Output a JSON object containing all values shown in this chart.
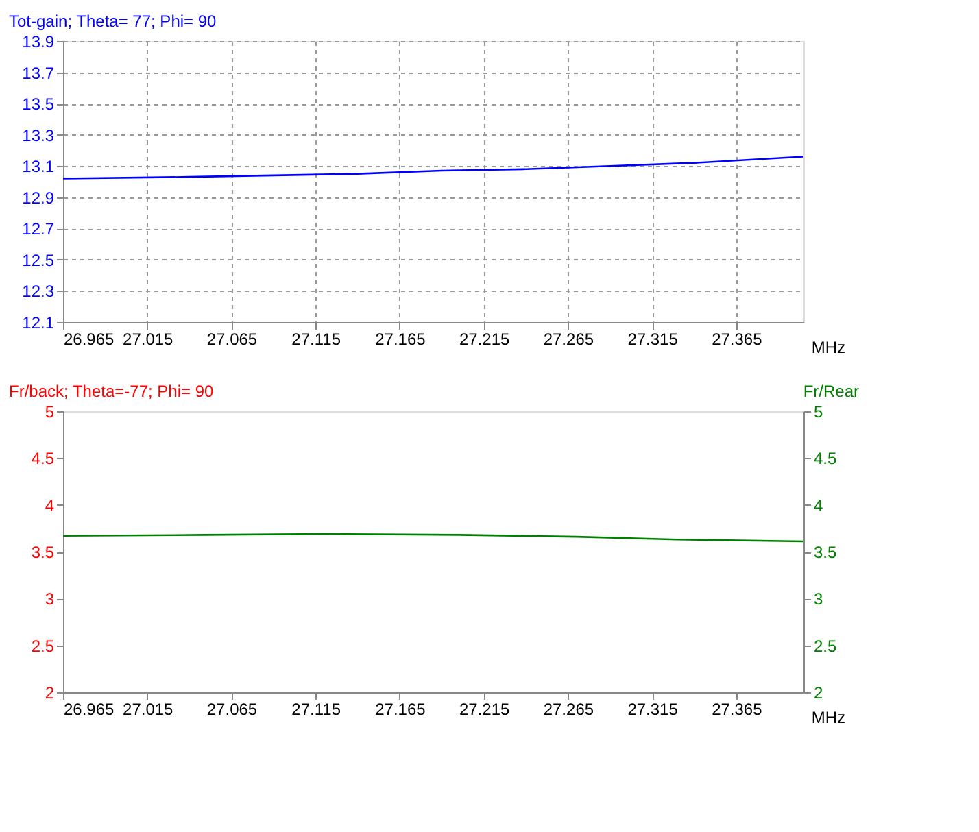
{
  "chart_data": [
    {
      "type": "line",
      "ylabel": "Tot-gain; Theta= 77; Phi= 90",
      "xlabel": "MHz",
      "x": [
        26.965,
        27.04,
        27.09,
        27.14,
        27.19,
        27.24,
        27.29,
        27.34,
        27.405
      ],
      "series": [
        {
          "color": "#0000ff",
          "values": [
            13.02,
            13.03,
            13.04,
            13.05,
            13.07,
            13.08,
            13.1,
            13.12,
            13.16
          ]
        }
      ],
      "xlim": [
        26.965,
        27.405
      ],
      "xticks": [
        26.965,
        27.015,
        27.065,
        27.115,
        27.165,
        27.215,
        27.265,
        27.315,
        27.365
      ],
      "ylim": [
        12.1,
        13.9
      ],
      "yticks": [
        12.1,
        12.3,
        12.5,
        12.7,
        12.9,
        13.1,
        13.3,
        13.5,
        13.7,
        13.9
      ],
      "grid": true,
      "legend": false
    },
    {
      "type": "line",
      "ylabel": "Fr/back; Theta=-77; Phi= 90",
      "y2label": "Fr/Rear",
      "xlabel": "MHz",
      "x": [
        26.965,
        27.05,
        27.12,
        27.2,
        27.27,
        27.33,
        27.405
      ],
      "series": [
        {
          "color": "#008000",
          "axis": "y2",
          "values": [
            3.67,
            3.68,
            3.69,
            3.68,
            3.66,
            3.63,
            3.61
          ]
        }
      ],
      "xlim": [
        26.965,
        27.405
      ],
      "xticks": [
        26.965,
        27.015,
        27.065,
        27.115,
        27.165,
        27.215,
        27.265,
        27.315,
        27.365
      ],
      "ylim": [
        2,
        5
      ],
      "yticks": [
        2,
        2.5,
        3,
        3.5,
        4,
        4.5,
        5
      ],
      "y2lim": [
        2,
        5
      ],
      "y2ticks": [
        2,
        2.5,
        3,
        3.5,
        4,
        4.5,
        5
      ],
      "grid": false,
      "legend": false
    }
  ]
}
